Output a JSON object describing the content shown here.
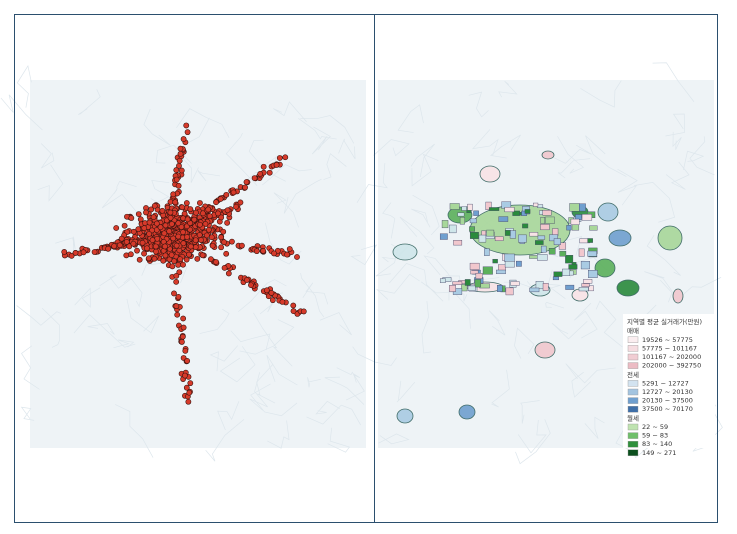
{
  "legend": {
    "title": "지역별 평균 실거래가(만원)",
    "groups": [
      {
        "name": "매매",
        "items": [
          "19526 ~ 57775",
          "57775 ~ 101167",
          "101167 ~ 202000",
          "202000 ~ 392750"
        ]
      },
      {
        "name": "전세",
        "items": [
          "5291 ~ 12727",
          "12727 ~ 20130",
          "20130 ~ 37500",
          "37500 ~ 70170"
        ]
      },
      {
        "name": "월세",
        "items": [
          "22 ~ 59",
          "59 ~ 83",
          "83 ~ 140",
          "149 ~ 271"
        ]
      }
    ]
  }
}
